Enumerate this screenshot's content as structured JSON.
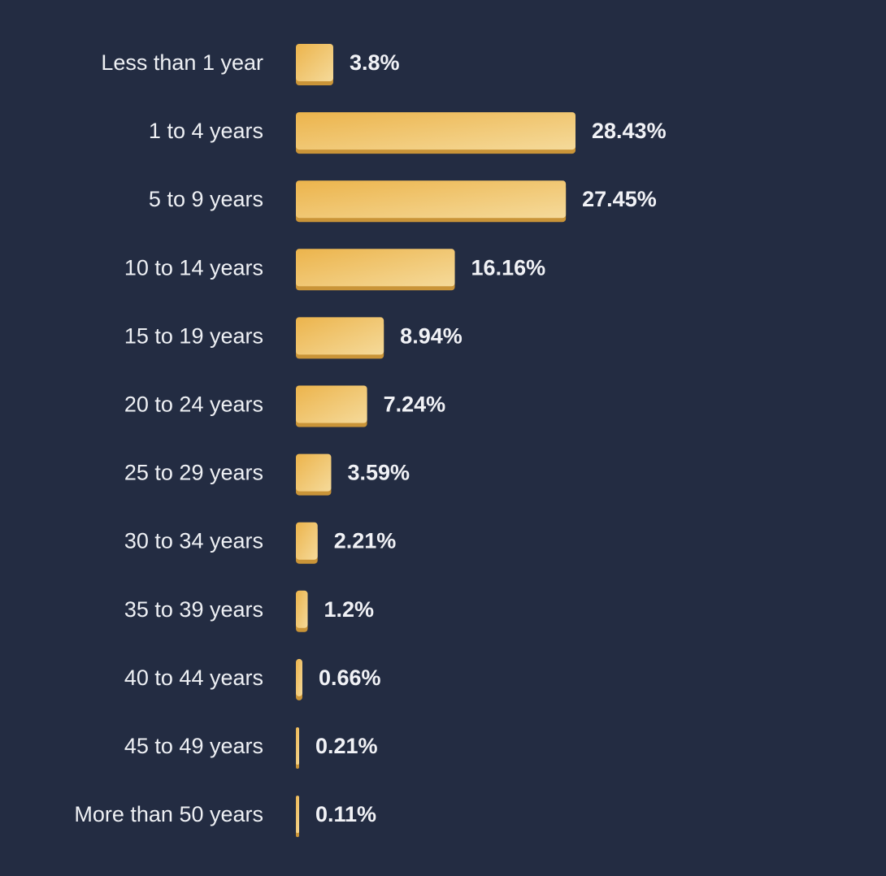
{
  "chart_data": {
    "type": "bar",
    "orientation": "horizontal",
    "categories": [
      "Less than 1 year",
      "1 to 4 years",
      "5 to 9 years",
      "10 to 14 years",
      "15 to 19 years",
      "20 to 24 years",
      "25 to 29 years",
      "30 to 34 years",
      "35 to 39 years",
      "40 to 44 years",
      "45 to 49 years",
      "More than 50 years"
    ],
    "values": [
      3.8,
      28.43,
      27.45,
      16.16,
      8.94,
      7.24,
      3.59,
      2.21,
      1.2,
      0.66,
      0.21,
      0.11
    ],
    "value_labels": [
      "3.8%",
      "28.43%",
      "27.45%",
      "16.16%",
      "8.94%",
      "7.24%",
      "3.59%",
      "2.21%",
      "1.2%",
      "0.66%",
      "0.21%",
      "0.11%"
    ],
    "title": "",
    "xlabel": "",
    "ylabel": "",
    "grid": false,
    "legend": "none",
    "colors": {
      "background": "#232c42",
      "bar_start": "#ecb44c",
      "bar_end": "#f5da9a",
      "bar_edge": "#c99438",
      "category_text": "#eef0f4",
      "value_text": "#f1f2f6"
    }
  }
}
